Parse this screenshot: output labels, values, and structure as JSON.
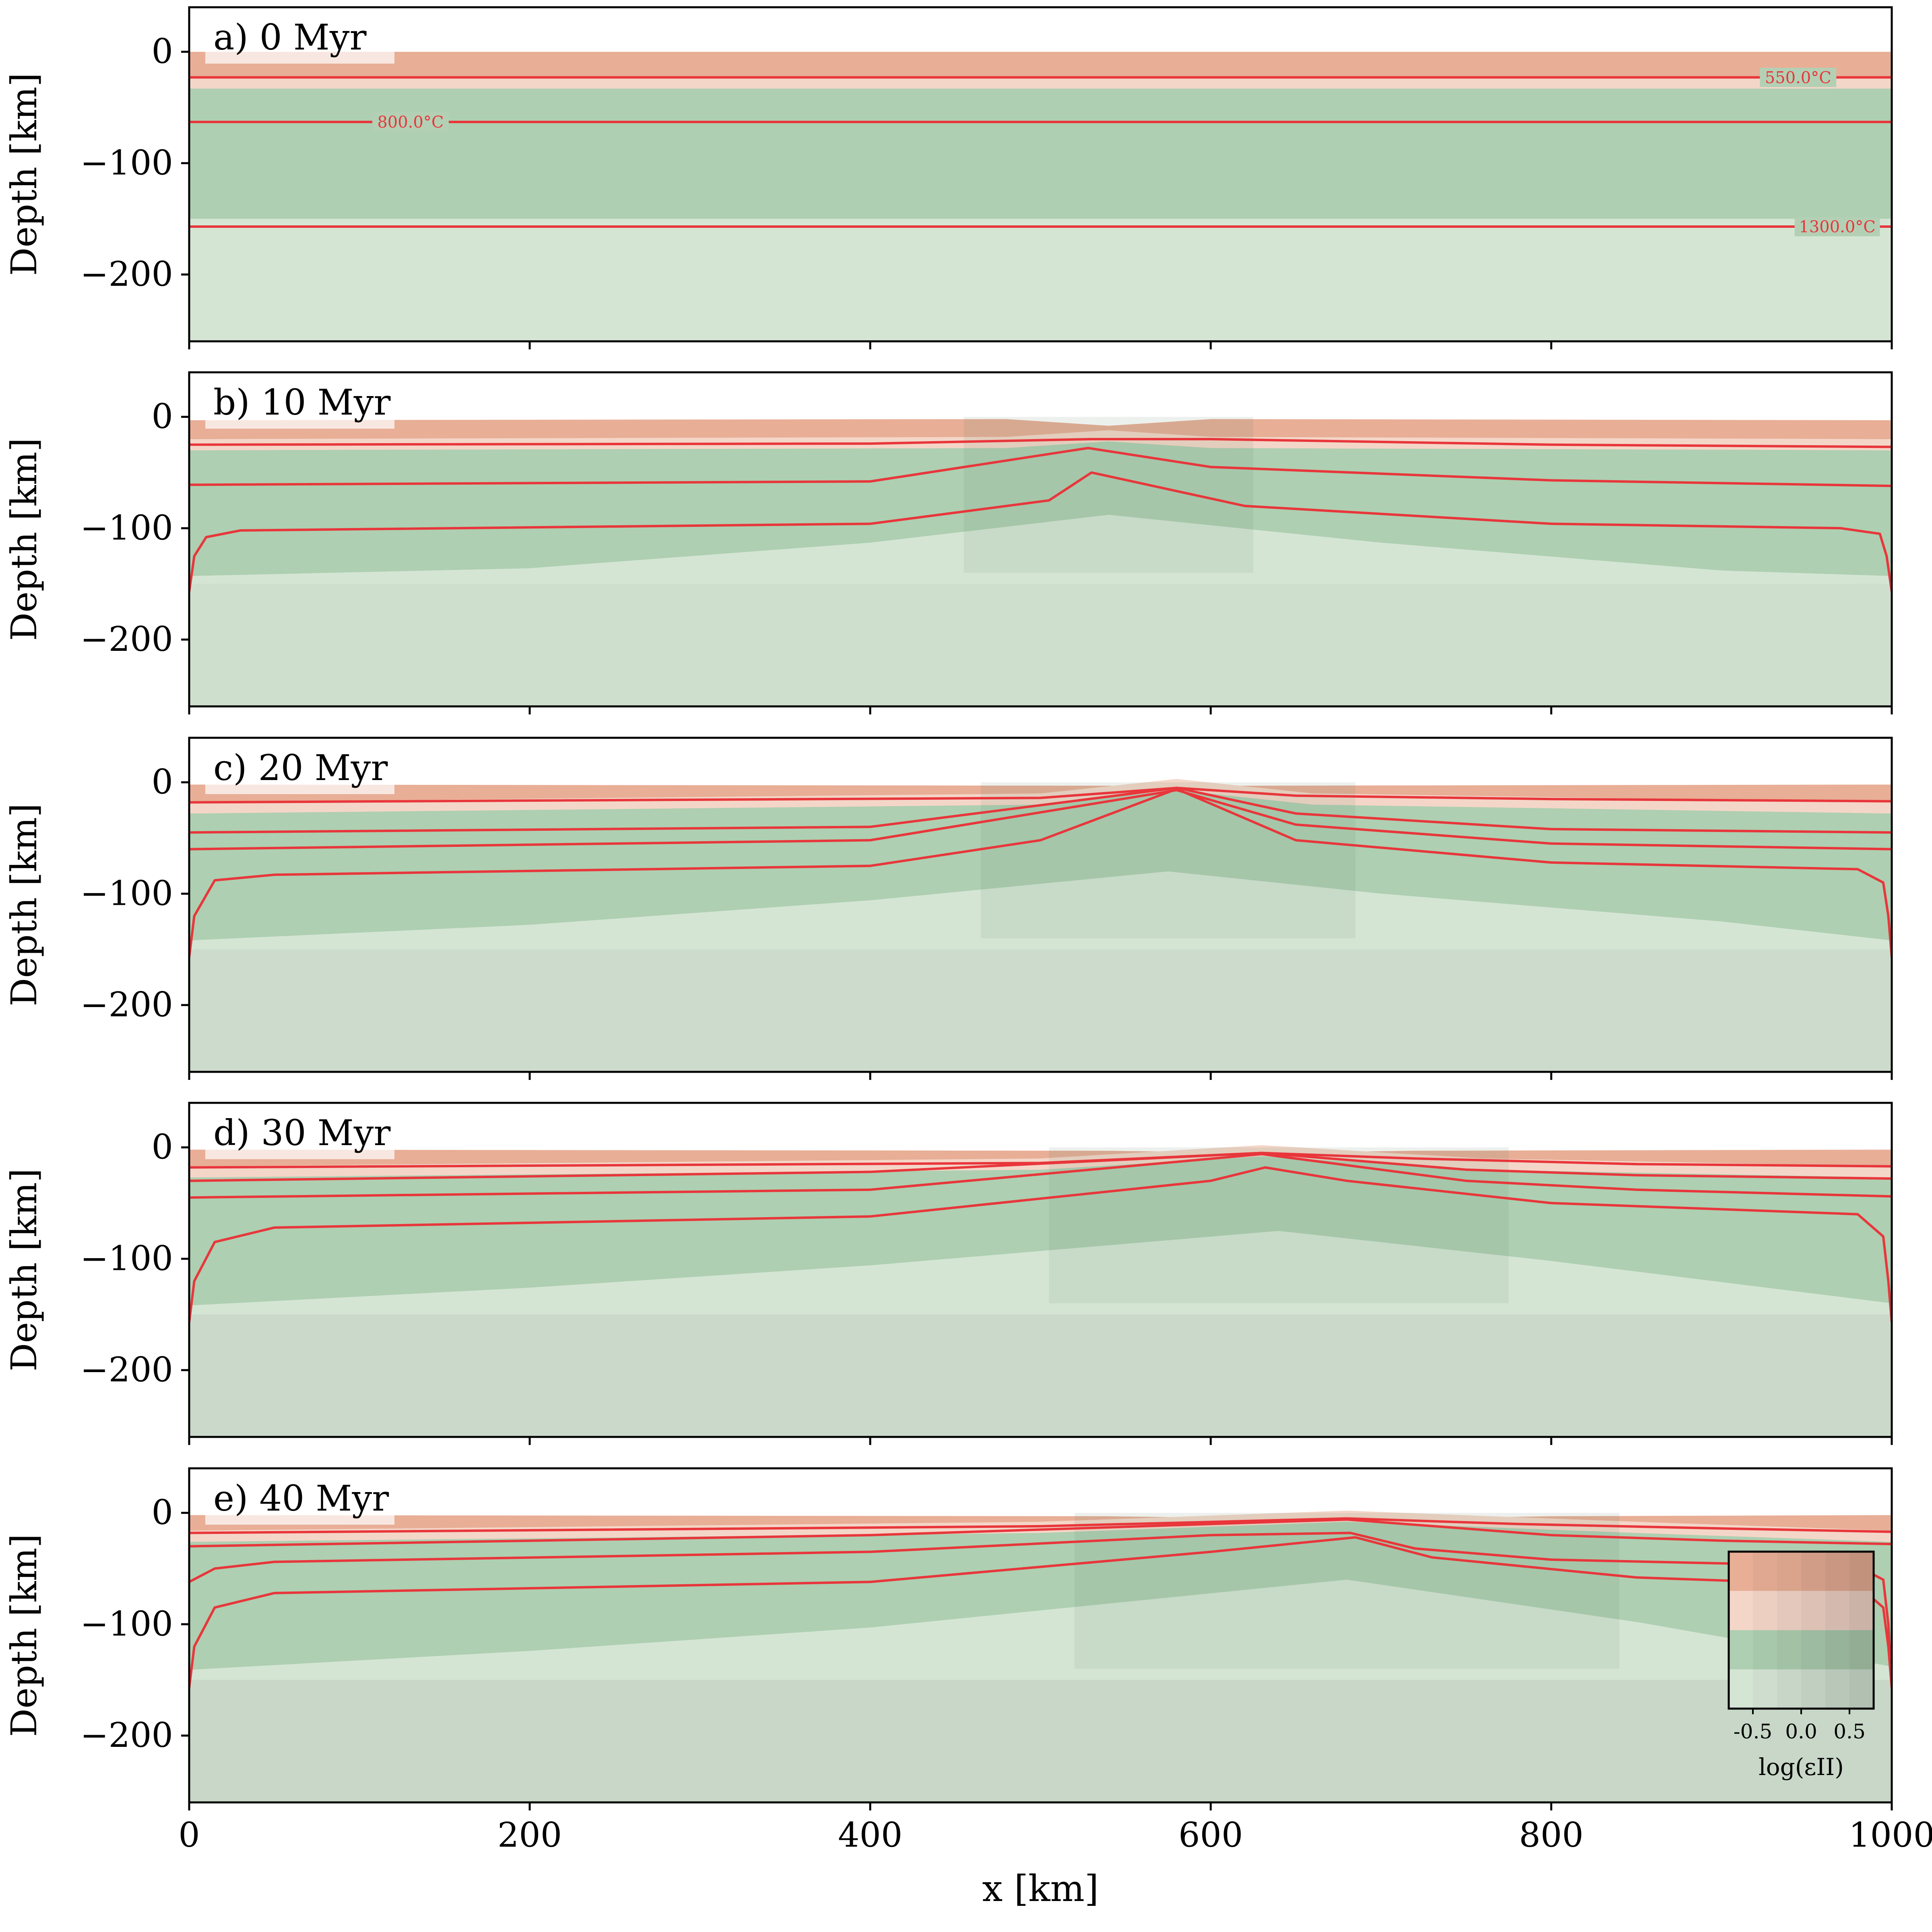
{
  "chart_data": {
    "type": "heatmap",
    "shared_x_axis": {
      "label": "x [km]",
      "range": [
        0,
        1000
      ],
      "ticks": [
        0,
        200,
        400,
        600,
        800,
        1000
      ]
    },
    "y_axis": {
      "label": "Depth [km]",
      "range": [
        -260,
        40
      ],
      "ticks": [
        0,
        -100,
        -200
      ],
      "tick_labels": [
        "0",
        "−100",
        "−200"
      ]
    },
    "isotherm_labels": [
      "550.0°C",
      "800.0°C",
      "1300.0°C"
    ],
    "isotherm_color": "#e8363b",
    "colors": {
      "upper_crust": "#e8ae96",
      "lower_crust": "#f4d6c8",
      "lithospheric_mantle": "#aecfb1",
      "asthenosphere": "#d5e5d4"
    },
    "panels": [
      {
        "label": "a) 0 Myr",
        "surface": [
          [
            0,
            0
          ],
          [
            1000,
            0
          ]
        ],
        "crust_base": [
          [
            0,
            -33
          ],
          [
            1000,
            -33
          ]
        ],
        "lab": [
          [
            0,
            -150
          ],
          [
            1000,
            -150
          ]
        ],
        "isotherms": [
          [
            [
              0,
              -23
            ],
            [
              1000,
              -23
            ]
          ],
          [
            [
              0,
              -63
            ],
            [
              1000,
              -63
            ]
          ],
          [
            [
              0,
              -157
            ],
            [
              1000,
              -157
            ]
          ]
        ]
      },
      {
        "label": "b) 10 Myr",
        "surface": [
          [
            0,
            -3
          ],
          [
            480,
            -2
          ],
          [
            540,
            -8
          ],
          [
            600,
            -2
          ],
          [
            1000,
            -3
          ]
        ],
        "crust_base": [
          [
            0,
            -30
          ],
          [
            480,
            -28
          ],
          [
            540,
            -22
          ],
          [
            600,
            -28
          ],
          [
            1000,
            -30
          ]
        ],
        "lab": [
          [
            0,
            -143
          ],
          [
            200,
            -136
          ],
          [
            400,
            -113
          ],
          [
            540,
            -88
          ],
          [
            700,
            -113
          ],
          [
            900,
            -138
          ],
          [
            1000,
            -143
          ]
        ],
        "isotherms": [
          [
            [
              0,
              -25
            ],
            [
              400,
              -24
            ],
            [
              530,
              -20
            ],
            [
              600,
              -20
            ],
            [
              800,
              -25
            ],
            [
              1000,
              -27
            ]
          ],
          [
            [
              0,
              -61
            ],
            [
              400,
              -58
            ],
            [
              528,
              -28
            ],
            [
              600,
              -45
            ],
            [
              800,
              -57
            ],
            [
              1000,
              -62
            ]
          ],
          [
            [
              0,
              -157
            ],
            [
              3,
              -125
            ],
            [
              10,
              -108
            ],
            [
              30,
              -102
            ],
            [
              400,
              -96
            ],
            [
              505,
              -75
            ],
            [
              530,
              -50
            ],
            [
              545,
              -55
            ],
            [
              620,
              -80
            ],
            [
              800,
              -96
            ],
            [
              970,
              -100
            ],
            [
              993,
              -105
            ],
            [
              997,
              -125
            ],
            [
              1000,
              -157
            ]
          ]
        ]
      },
      {
        "label": "c) 20 Myr",
        "surface": [
          [
            0,
            -2
          ],
          [
            540,
            -3
          ],
          [
            580,
            -4
          ],
          [
            620,
            -3
          ],
          [
            1000,
            -2
          ]
        ],
        "crust_base": [
          [
            0,
            -28
          ],
          [
            500,
            -20
          ],
          [
            580,
            -7
          ],
          [
            660,
            -20
          ],
          [
            1000,
            -28
          ]
        ],
        "lab": [
          [
            0,
            -142
          ],
          [
            200,
            -128
          ],
          [
            400,
            -106
          ],
          [
            575,
            -80
          ],
          [
            700,
            -100
          ],
          [
            900,
            -125
          ],
          [
            1000,
            -142
          ]
        ],
        "isotherms": [
          [
            [
              0,
              -18
            ],
            [
              500,
              -14
            ],
            [
              580,
              -5
            ],
            [
              650,
              -12
            ],
            [
              800,
              -15
            ],
            [
              1000,
              -17
            ]
          ],
          [
            [
              0,
              -45
            ],
            [
              400,
              -40
            ],
            [
              580,
              -5
            ],
            [
              650,
              -28
            ],
            [
              800,
              -42
            ],
            [
              1000,
              -45
            ]
          ],
          [
            [
              0,
              -60
            ],
            [
              400,
              -52
            ],
            [
              580,
              -7
            ],
            [
              650,
              -38
            ],
            [
              800,
              -55
            ],
            [
              1000,
              -60
            ]
          ],
          [
            [
              0,
              -157
            ],
            [
              3,
              -120
            ],
            [
              15,
              -88
            ],
            [
              50,
              -83
            ],
            [
              400,
              -75
            ],
            [
              500,
              -52
            ],
            [
              580,
              -6
            ],
            [
              650,
              -52
            ],
            [
              800,
              -72
            ],
            [
              980,
              -78
            ],
            [
              995,
              -90
            ],
            [
              998,
              -120
            ],
            [
              1000,
              -157
            ]
          ]
        ]
      },
      {
        "label": "d) 30 Myr",
        "surface": [
          [
            0,
            -2
          ],
          [
            540,
            -3
          ],
          [
            630,
            -5
          ],
          [
            720,
            -3
          ],
          [
            1000,
            -2
          ]
        ],
        "crust_base": [
          [
            0,
            -27
          ],
          [
            500,
            -20
          ],
          [
            630,
            -8
          ],
          [
            760,
            -20
          ],
          [
            1000,
            -27
          ]
        ],
        "lab": [
          [
            0,
            -142
          ],
          [
            200,
            -126
          ],
          [
            400,
            -106
          ],
          [
            640,
            -75
          ],
          [
            800,
            -102
          ],
          [
            1000,
            -140
          ]
        ],
        "isotherms": [
          [
            [
              0,
              -18
            ],
            [
              500,
              -14
            ],
            [
              630,
              -5
            ],
            [
              720,
              -10
            ],
            [
              850,
              -15
            ],
            [
              1000,
              -17
            ]
          ],
          [
            [
              0,
              -30
            ],
            [
              400,
              -22
            ],
            [
              630,
              -5
            ],
            [
              750,
              -20
            ],
            [
              850,
              -25
            ],
            [
              1000,
              -28
            ]
          ],
          [
            [
              0,
              -45
            ],
            [
              400,
              -38
            ],
            [
              630,
              -6
            ],
            [
              750,
              -30
            ],
            [
              850,
              -38
            ],
            [
              1000,
              -44
            ]
          ],
          [
            [
              0,
              -157
            ],
            [
              3,
              -120
            ],
            [
              15,
              -85
            ],
            [
              50,
              -72
            ],
            [
              400,
              -62
            ],
            [
              600,
              -30
            ],
            [
              632,
              -18
            ],
            [
              680,
              -30
            ],
            [
              800,
              -50
            ],
            [
              980,
              -60
            ],
            [
              995,
              -80
            ],
            [
              998,
              -120
            ],
            [
              1000,
              -157
            ]
          ]
        ]
      },
      {
        "label": "e) 40 Myr",
        "surface": [
          [
            0,
            -2
          ],
          [
            540,
            -3
          ],
          [
            680,
            -6
          ],
          [
            800,
            -3
          ],
          [
            1000,
            -2
          ]
        ],
        "crust_base": [
          [
            0,
            -26
          ],
          [
            500,
            -18
          ],
          [
            680,
            -8
          ],
          [
            850,
            -18
          ],
          [
            1000,
            -26
          ]
        ],
        "lab": [
          [
            0,
            -141
          ],
          [
            200,
            -124
          ],
          [
            400,
            -103
          ],
          [
            680,
            -60
          ],
          [
            850,
            -98
          ],
          [
            1000,
            -138
          ]
        ],
        "isotherms": [
          [
            [
              0,
              -18
            ],
            [
              500,
              -12
            ],
            [
              680,
              -5
            ],
            [
              780,
              -10
            ],
            [
              900,
              -14
            ],
            [
              1000,
              -17
            ]
          ],
          [
            [
              0,
              -30
            ],
            [
              400,
              -20
            ],
            [
              680,
              -6
            ],
            [
              800,
              -20
            ],
            [
              900,
              -25
            ],
            [
              1000,
              -28
            ]
          ],
          [
            [
              0,
              -62
            ],
            [
              15,
              -50
            ],
            [
              50,
              -44
            ],
            [
              400,
              -35
            ],
            [
              600,
              -20
            ],
            [
              682,
              -18
            ],
            [
              720,
              -32
            ],
            [
              800,
              -42
            ],
            [
              980,
              -48
            ],
            [
              995,
              -60
            ],
            [
              998,
              -100
            ],
            [
              1000,
              -157
            ]
          ],
          [
            [
              0,
              -157
            ],
            [
              3,
              -120
            ],
            [
              15,
              -85
            ],
            [
              50,
              -72
            ],
            [
              400,
              -62
            ],
            [
              600,
              -35
            ],
            [
              685,
              -22
            ],
            [
              730,
              -40
            ],
            [
              850,
              -58
            ],
            [
              980,
              -65
            ],
            [
              995,
              -85
            ],
            [
              998,
              -120
            ],
            [
              1000,
              -157
            ]
          ]
        ]
      }
    ],
    "inset_colorbar": {
      "label": "log(εII)",
      "ticks": [
        -0.5,
        0.0,
        0.5
      ],
      "tick_labels": [
        "-0.5",
        "0.0",
        "0.5"
      ],
      "range": [
        -0.75,
        0.75
      ],
      "layers": [
        "#e8ae96",
        "#f4d6c8",
        "#aecfb1",
        "#d5e5d4"
      ]
    }
  }
}
